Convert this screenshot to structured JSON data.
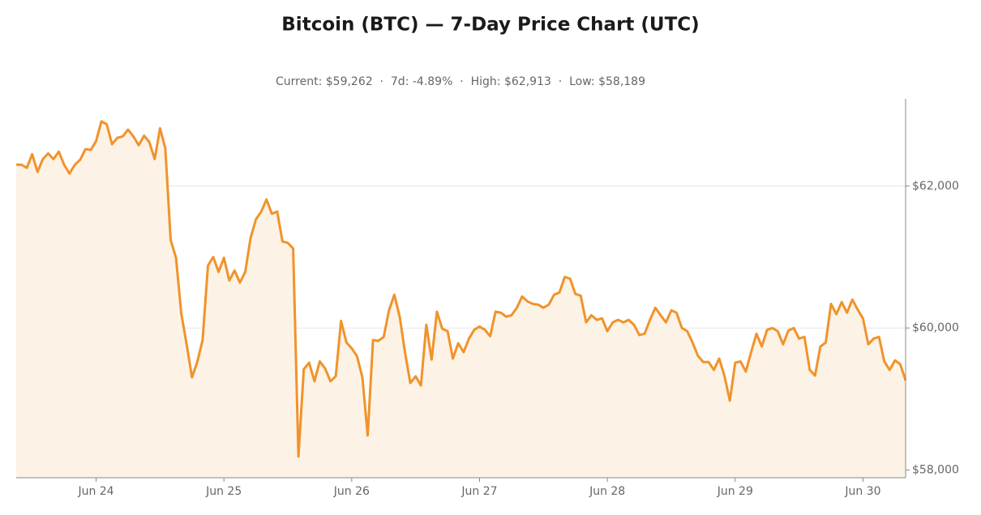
{
  "chart_data": {
    "type": "line",
    "title": "Bitcoin (BTC) — 7-Day Price Chart (UTC)",
    "subtitle": "Current: $59,262  ·  7d: -4.89%  ·  High: $62,913  ·  Low: $58,189",
    "color": "#f0932b",
    "fill_color": "#fdf2e6",
    "grid": true,
    "categories": [
      null,
      null,
      null,
      null,
      null,
      null,
      null,
      null,
      null,
      null,
      null,
      null,
      null,
      null,
      null,
      "Jun 24",
      null,
      null,
      null,
      null,
      null,
      null,
      null,
      null,
      null,
      null,
      null,
      null,
      null,
      null,
      null,
      null,
      null,
      null,
      null,
      null,
      null,
      null,
      null,
      "Jun 25",
      null,
      null,
      null,
      null,
      null,
      null,
      null,
      null,
      null,
      null,
      null,
      null,
      null,
      null,
      null,
      null,
      null,
      null,
      null,
      null,
      null,
      null,
      null,
      "Jun 26",
      null,
      null,
      null,
      null,
      null,
      null,
      null,
      null,
      null,
      null,
      null,
      null,
      null,
      null,
      null,
      null,
      null,
      null,
      null,
      null,
      null,
      null,
      null,
      "Jun 27",
      null,
      null,
      null,
      null,
      null,
      null,
      null,
      null,
      null,
      null,
      null,
      null,
      null,
      null,
      null,
      null,
      null,
      null,
      null,
      null,
      null,
      null,
      null,
      "Jun 28",
      null,
      null,
      null,
      null,
      null,
      null,
      null,
      null,
      null,
      null,
      null,
      null,
      null,
      null,
      null,
      null,
      null,
      null,
      null,
      null,
      null,
      null,
      null,
      "Jun 29",
      null,
      null,
      null,
      null,
      null,
      null,
      null,
      null,
      null,
      null,
      null,
      null,
      null,
      null,
      null,
      null,
      null,
      null,
      null,
      null,
      null,
      null,
      null,
      "Jun 30",
      null,
      null,
      null,
      null,
      null,
      null,
      null,
      null
    ],
    "values": [
      62303,
      62300,
      62257,
      62450,
      62200,
      62380,
      62460,
      62380,
      62485,
      62300,
      62177,
      62300,
      62370,
      62520,
      62510,
      62633,
      62913,
      62870,
      62590,
      62680,
      62700,
      62795,
      62700,
      62575,
      62710,
      62620,
      62380,
      62815,
      62530,
      61240,
      60990,
      60205,
      59770,
      59305,
      59520,
      59830,
      60880,
      61000,
      60790,
      60990,
      60670,
      60810,
      60640,
      60790,
      61265,
      61530,
      61640,
      61810,
      61610,
      61640,
      61220,
      61200,
      61120,
      58189,
      59420,
      59510,
      59250,
      59530,
      59430,
      59250,
      59320,
      60100,
      59795,
      59715,
      59600,
      59305,
      58485,
      59830,
      59820,
      59875,
      60250,
      60470,
      60160,
      59660,
      59225,
      59320,
      59190,
      60045,
      59555,
      60230,
      59990,
      59955,
      59570,
      59785,
      59660,
      59850,
      59975,
      60020,
      59975,
      59885,
      60230,
      60215,
      60160,
      60180,
      60285,
      60445,
      60375,
      60340,
      60330,
      60285,
      60330,
      60470,
      60500,
      60720,
      60695,
      60480,
      60455,
      60080,
      60180,
      60115,
      60135,
      59955,
      60080,
      60115,
      60080,
      60115,
      60045,
      59900,
      59920,
      60115,
      60285,
      60180,
      60080,
      60250,
      60215,
      60000,
      59955,
      59795,
      59610,
      59520,
      59520,
      59410,
      59570,
      59320,
      58975,
      59510,
      59530,
      59385,
      59660,
      59920,
      59740,
      59975,
      60000,
      59955,
      59770,
      59965,
      60000,
      59850,
      59875,
      59410,
      59330,
      59740,
      59795,
      60340,
      60195,
      60365,
      60215,
      60400,
      60260,
      60135,
      59770,
      59850,
      59875,
      59530,
      59410,
      59545,
      59490,
      59262
    ],
    "ylim": [
      57890,
      63230
    ],
    "yticks": [
      {
        "value": 58000,
        "label": "$58,000"
      },
      {
        "value": 60000,
        "label": "$60,000"
      },
      {
        "value": 62000,
        "label": "$62,000"
      }
    ]
  }
}
